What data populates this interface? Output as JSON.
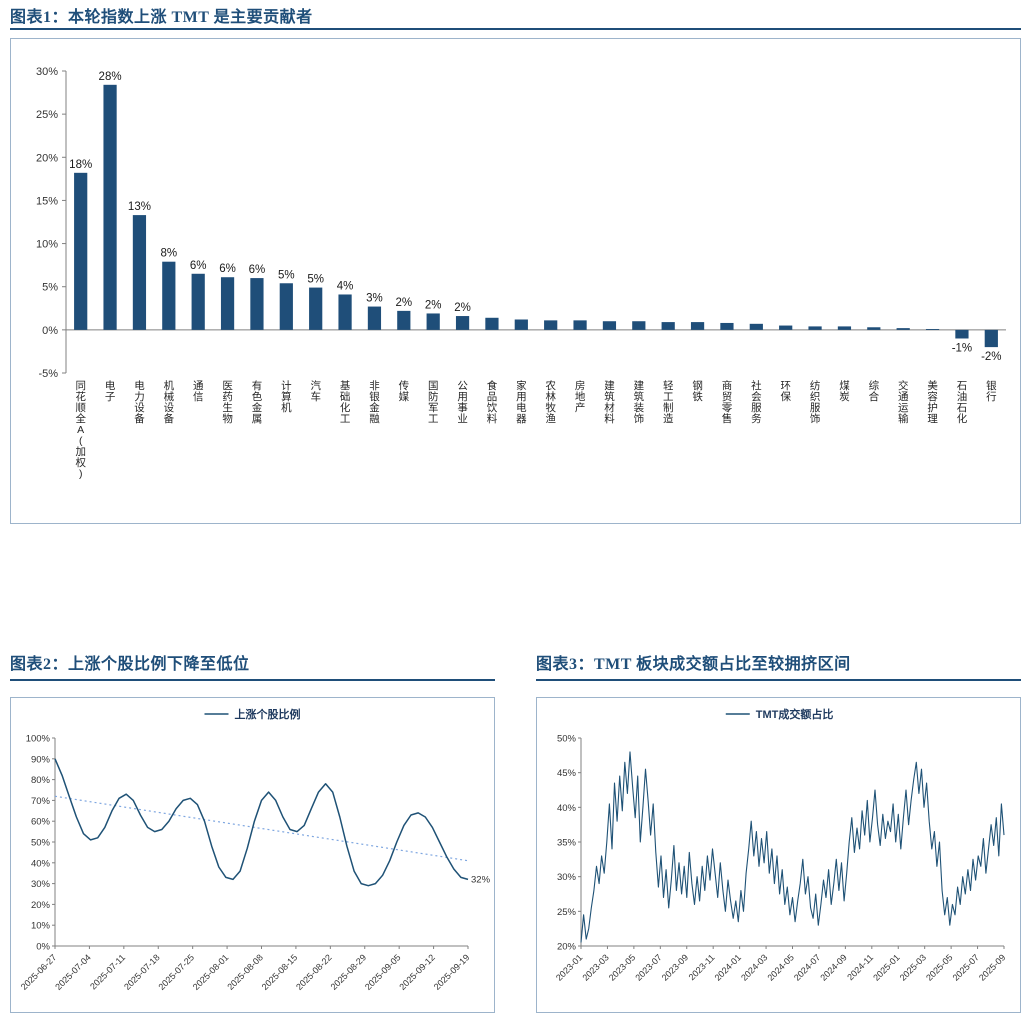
{
  "colors": {
    "accent": "#1F4E79",
    "bar": "#1F4E79",
    "line": "#1F5276",
    "trend": "#7EA6E0",
    "axis": "#808080",
    "text": "#333333",
    "border": "#9DB4CB"
  },
  "chart_data": [
    {
      "type": "bar",
      "title": "图表1：本轮指数上涨 TMT 是主要贡献者",
      "categories": [
        "同花顺全A(加权)",
        "电子",
        "电力设备",
        "机械设备",
        "通信",
        "医药生物",
        "有色金属",
        "计算机",
        "汽车",
        "基础化工",
        "非银金融",
        "传媒",
        "国防军工",
        "公用事业",
        "食品饮料",
        "家用电器",
        "农林牧渔",
        "房地产",
        "建筑材料",
        "建筑装饰",
        "轻工制造",
        "钢铁",
        "商贸零售",
        "社会服务",
        "环保",
        "纺织服饰",
        "煤炭",
        "综合",
        "交通运输",
        "美容护理",
        "石油石化",
        "银行"
      ],
      "values": [
        18.2,
        28.4,
        13.3,
        7.9,
        6.5,
        6.1,
        6.0,
        5.4,
        4.9,
        4.1,
        2.7,
        2.2,
        1.9,
        1.6,
        1.4,
        1.2,
        1.1,
        1.1,
        1.0,
        1.0,
        0.9,
        0.9,
        0.8,
        0.7,
        0.5,
        0.4,
        0.4,
        0.3,
        0.2,
        0.1,
        -1.0,
        -2.0
      ],
      "bar_labels": [
        "18%",
        "28%",
        "13%",
        "8%",
        "6%",
        "6%",
        "6%",
        "5%",
        "5%",
        "4%",
        "3%",
        "2%",
        "2%",
        "2%",
        "",
        "",
        "",
        "",
        "",
        "",
        "",
        "",
        "",
        "",
        "",
        "",
        "",
        "",
        "",
        "",
        "-1%",
        "-2%"
      ],
      "ylim": [
        -5,
        30
      ],
      "ytick_step": 5,
      "ytick_suffix": "%",
      "grid": false,
      "legend_position": "none"
    },
    {
      "type": "line",
      "title": "图表2：上涨个股比例下降至低位",
      "legend": "上涨个股比例",
      "legend_position": "top",
      "ylim": [
        0,
        100
      ],
      "ytick_step": 10,
      "ytick_suffix": "%",
      "grid": false,
      "x_tick_labels": [
        "2025-06-27",
        "2025-07-04",
        "2025-07-11",
        "2025-07-18",
        "2025-07-25",
        "2025-08-01",
        "2025-08-08",
        "2025-08-15",
        "2025-08-22",
        "2025-08-29",
        "2025-09-05",
        "2025-09-12",
        "2025-09-19"
      ],
      "values": [
        90,
        82,
        72,
        62,
        54,
        51,
        52,
        57,
        65,
        71,
        73,
        70,
        63,
        57,
        55,
        56,
        60,
        66,
        70,
        71,
        68,
        60,
        48,
        38,
        33,
        32,
        36,
        47,
        60,
        70,
        74,
        70,
        62,
        56,
        55,
        58,
        66,
        74,
        78,
        74,
        62,
        48,
        36,
        30,
        29,
        30,
        34,
        41,
        50,
        58,
        63,
        64,
        62,
        57,
        50,
        43,
        37,
        33,
        32
      ],
      "trendline": {
        "start": 72,
        "end": 41,
        "style": "dotted"
      },
      "annotation": {
        "text": "32%",
        "position": "end"
      }
    },
    {
      "type": "line",
      "title": "图表3：TMT 板块成交额占比至较拥挤区间",
      "legend": "TMT成交额占比",
      "legend_position": "top",
      "ylim": [
        20,
        50
      ],
      "ytick_step": 5,
      "ytick_suffix": "%",
      "grid": false,
      "x_tick_labels": [
        "2023-01",
        "2023-03",
        "2023-05",
        "2023-07",
        "2023-09",
        "2023-11",
        "2024-01",
        "2024-03",
        "2024-05",
        "2024-07",
        "2024-09",
        "2024-11",
        "2025-01",
        "2025-03",
        "2025-05",
        "2025-07",
        "2025-09"
      ],
      "values": [
        20.5,
        24.5,
        21.0,
        22.5,
        25.5,
        28.0,
        31.5,
        29.0,
        33.0,
        30.5,
        35.0,
        40.5,
        34.0,
        43.5,
        38.0,
        44.5,
        39.5,
        46.5,
        42.0,
        48.0,
        43.0,
        38.5,
        44.5,
        35.0,
        40.0,
        45.5,
        41.0,
        36.0,
        40.5,
        33.5,
        28.5,
        33.0,
        27.0,
        31.0,
        25.5,
        29.5,
        34.5,
        28.0,
        32.0,
        27.5,
        31.5,
        27.0,
        33.5,
        29.0,
        26.0,
        30.0,
        26.5,
        31.5,
        28.0,
        33.0,
        29.5,
        34.0,
        30.5,
        27.0,
        32.0,
        28.0,
        25.0,
        29.5,
        26.5,
        24.0,
        26.5,
        23.5,
        28.0,
        25.0,
        30.5,
        34.0,
        38.0,
        33.0,
        36.5,
        31.5,
        35.5,
        32.0,
        36.5,
        30.5,
        34.0,
        29.0,
        33.0,
        27.5,
        31.0,
        26.0,
        28.5,
        24.5,
        27.0,
        23.5,
        26.5,
        29.0,
        32.5,
        27.5,
        30.0,
        25.5,
        24.0,
        27.5,
        23.0,
        26.0,
        29.5,
        27.0,
        31.0,
        26.0,
        29.0,
        32.5,
        28.0,
        32.0,
        26.5,
        30.5,
        35.0,
        38.5,
        33.5,
        37.0,
        34.0,
        39.5,
        36.0,
        41.0,
        35.0,
        38.5,
        42.5,
        37.5,
        34.5,
        39.0,
        35.5,
        38.0,
        36.5,
        40.5,
        35.0,
        39.0,
        34.0,
        38.5,
        42.5,
        37.5,
        41.0,
        44.0,
        46.5,
        42.0,
        45.5,
        40.0,
        43.5,
        38.0,
        34.0,
        36.5,
        31.5,
        35.0,
        28.0,
        24.5,
        27.0,
        23.0,
        26.0,
        24.5,
        28.5,
        26.0,
        30.0,
        27.5,
        31.0,
        28.0,
        32.5,
        29.5,
        33.0,
        31.5,
        35.5,
        30.5,
        34.0,
        37.5,
        34.5,
        38.5,
        33.0,
        40.5,
        36.0
      ]
    }
  ]
}
